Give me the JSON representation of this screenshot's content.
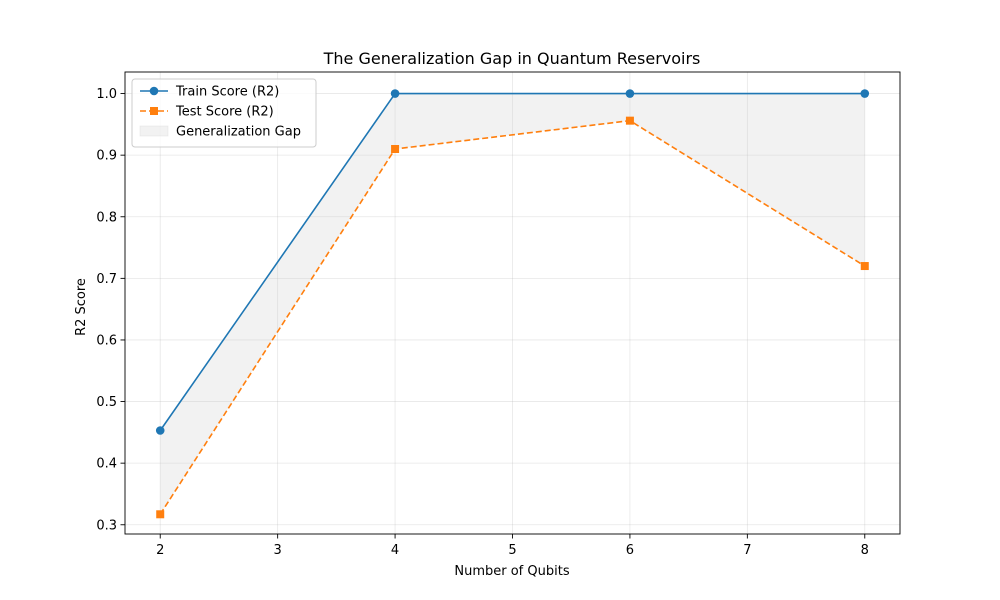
{
  "chart_data": {
    "type": "line",
    "title": "The Generalization Gap in Quantum Reservoirs",
    "xlabel": "Number of Qubits",
    "ylabel": "R2 Score",
    "x": [
      2,
      4,
      6,
      8
    ],
    "xticks": [
      "2",
      "3",
      "4",
      "5",
      "6",
      "7",
      "8"
    ],
    "yticks": [
      "0.3",
      "0.4",
      "0.5",
      "0.6",
      "0.7",
      "0.8",
      "0.9",
      "1.0"
    ],
    "xlim": [
      1.7,
      8.3
    ],
    "ylim": [
      0.285,
      1.035
    ],
    "grid": true,
    "legend_position": "top-left",
    "series": [
      {
        "name": "Train Score (R2)",
        "values": [
          0.453,
          1.0,
          1.0,
          1.0
        ],
        "color": "#1f77b4",
        "linestyle": "solid",
        "marker": "circle"
      },
      {
        "name": "Test Score (R2)",
        "values": [
          0.317,
          0.91,
          0.956,
          0.72
        ],
        "color": "#ff7f0e",
        "linestyle": "dashed",
        "marker": "square"
      }
    ],
    "fill_between": {
      "name": "Generalization Gap",
      "color": "#cccccc",
      "opacity": 0.25
    }
  }
}
